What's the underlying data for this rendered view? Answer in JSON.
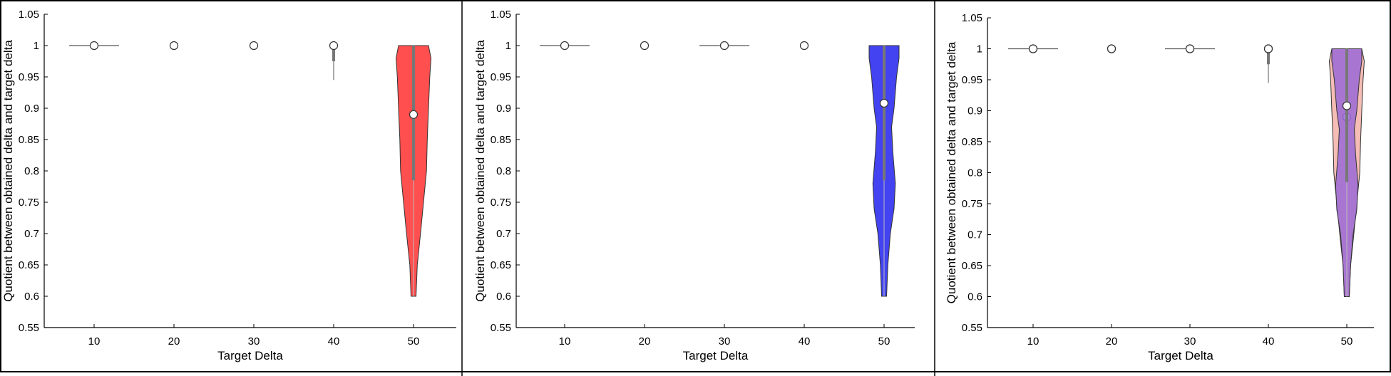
{
  "chart_data": [
    {
      "type": "violin",
      "xlabel": "Target Delta",
      "ylabel": "Quotient between obtained delta and target delta",
      "categories": [
        "10",
        "20",
        "30",
        "40",
        "50"
      ],
      "ylim": [
        0.55,
        1.05
      ],
      "yticks": [
        "0.55",
        "0.6",
        "0.65",
        "0.7",
        "0.75",
        "0.8",
        "0.85",
        "0.9",
        "0.95",
        "1",
        "1.05"
      ],
      "grid": false,
      "series": [
        {
          "fill": "#ff3030",
          "points": [
            {
              "x": "10",
              "median": 1.0,
              "whisker": [
                1.0,
                1.0
              ],
              "iqr_line": [
                0.97,
                1.03
              ]
            },
            {
              "x": "20",
              "median": 1.0
            },
            {
              "x": "30",
              "median": 1.0
            },
            {
              "x": "40",
              "median": 1.0,
              "q1": 0.975,
              "whisker_low": 0.945
            },
            {
              "x": "50",
              "median": 0.89,
              "q1": 0.785,
              "q3": 1.0,
              "min": 0.6,
              "max": 1.0,
              "density": [
                [
                  1.0,
                  0.6
                ],
                [
                  0.98,
                  0.7
                ],
                [
                  0.95,
                  0.65
                ],
                [
                  0.9,
                  0.6
                ],
                [
                  0.85,
                  0.55
                ],
                [
                  0.8,
                  0.52
                ],
                [
                  0.75,
                  0.4
                ],
                [
                  0.7,
                  0.28
                ],
                [
                  0.65,
                  0.15
                ],
                [
                  0.6,
                  0.1
                ]
              ]
            }
          ]
        }
      ]
    },
    {
      "type": "violin",
      "xlabel": "Target Delta",
      "ylabel": "Quotient between obtained delta and target delta",
      "categories": [
        "10",
        "20",
        "30",
        "40",
        "50"
      ],
      "ylim": [
        0.55,
        1.05
      ],
      "yticks": [
        "0.55",
        "0.6",
        "0.65",
        "0.7",
        "0.75",
        "0.8",
        "0.85",
        "0.9",
        "0.95",
        "1",
        "1.05"
      ],
      "grid": false,
      "series": [
        {
          "fill": "#2222ee",
          "points": [
            {
              "x": "10",
              "median": 1.0,
              "iqr_line": [
                0.97,
                1.03
              ]
            },
            {
              "x": "20",
              "median": 1.0
            },
            {
              "x": "30",
              "median": 1.0,
              "iqr_line": [
                0.97,
                1.03
              ]
            },
            {
              "x": "40",
              "median": 1.0
            },
            {
              "x": "50",
              "median": 0.908,
              "q1": 0.785,
              "q3": 1.0,
              "min": 0.6,
              "max": 1.0,
              "density": [
                [
                  1.0,
                  0.6
                ],
                [
                  0.98,
                  0.6
                ],
                [
                  0.95,
                  0.5
                ],
                [
                  0.9,
                  0.4
                ],
                [
                  0.87,
                  0.3
                ],
                [
                  0.83,
                  0.35
                ],
                [
                  0.78,
                  0.45
                ],
                [
                  0.74,
                  0.4
                ],
                [
                  0.7,
                  0.25
                ],
                [
                  0.65,
                  0.15
                ],
                [
                  0.6,
                  0.1
                ]
              ]
            }
          ]
        }
      ]
    },
    {
      "type": "violin",
      "xlabel": "Target Delta",
      "ylabel": "Quotient between obtained delta and target delta",
      "categories": [
        "10",
        "20",
        "30",
        "40",
        "50"
      ],
      "ylim": [
        0.55,
        1.05
      ],
      "yticks": [
        "0.55",
        "0.6",
        "0.65",
        "0.7",
        "0.75",
        "0.8",
        "0.85",
        "0.9",
        "0.95",
        "1",
        "1.05"
      ],
      "grid": false,
      "series": [
        {
          "fill": "#f3b2a8",
          "points": [
            {
              "x": "10",
              "median": 1.0,
              "iqr_line": [
                0.97,
                1.03
              ]
            },
            {
              "x": "20",
              "median": 1.0
            },
            {
              "x": "30",
              "median": 1.0,
              "iqr_line": [
                0.97,
                1.03
              ]
            },
            {
              "x": "40",
              "median": 1.0,
              "q1": 0.975,
              "whisker_low": 0.945
            },
            {
              "x": "50",
              "median": 0.89,
              "q1": 0.785,
              "q3": 1.0,
              "min": 0.6,
              "max": 1.0,
              "density": [
                [
                  1.0,
                  0.6
                ],
                [
                  0.98,
                  0.7
                ],
                [
                  0.95,
                  0.65
                ],
                [
                  0.9,
                  0.6
                ],
                [
                  0.85,
                  0.55
                ],
                [
                  0.8,
                  0.52
                ],
                [
                  0.75,
                  0.4
                ],
                [
                  0.7,
                  0.28
                ],
                [
                  0.65,
                  0.15
                ],
                [
                  0.6,
                  0.1
                ]
              ]
            }
          ]
        },
        {
          "fill": "#9a6ad6",
          "points": [
            {
              "x": "10",
              "median": 1.0
            },
            {
              "x": "20",
              "median": 1.0
            },
            {
              "x": "30",
              "median": 1.0
            },
            {
              "x": "40",
              "median": 1.0
            },
            {
              "x": "50",
              "median": 0.908,
              "q1": 0.785,
              "q3": 1.0,
              "min": 0.6,
              "max": 1.0,
              "density": [
                [
                  1.0,
                  0.6
                ],
                [
                  0.98,
                  0.6
                ],
                [
                  0.95,
                  0.5
                ],
                [
                  0.9,
                  0.4
                ],
                [
                  0.87,
                  0.3
                ],
                [
                  0.83,
                  0.35
                ],
                [
                  0.78,
                  0.45
                ],
                [
                  0.74,
                  0.4
                ],
                [
                  0.7,
                  0.25
                ],
                [
                  0.65,
                  0.15
                ],
                [
                  0.6,
                  0.1
                ]
              ]
            }
          ]
        }
      ]
    }
  ]
}
